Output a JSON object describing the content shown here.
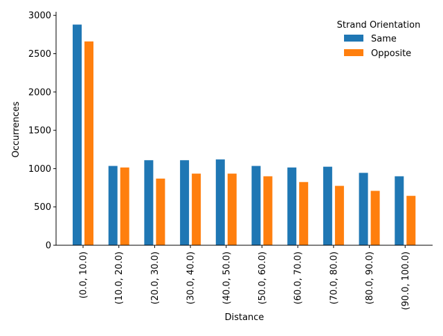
{
  "chart_data": {
    "type": "bar",
    "title": "",
    "xlabel": "Distance",
    "ylabel": "Occurrences",
    "ylim": [
      0,
      3020
    ],
    "yticks": [
      0,
      500,
      1000,
      1500,
      2000,
      2500,
      3000
    ],
    "grid": false,
    "legend": {
      "title": "Strand Orientation",
      "placement": "top-right"
    },
    "categories": [
      "(0.0, 10.0)",
      "(10.0, 20.0)",
      "(20.0, 30.0)",
      "(30.0, 40.0)",
      "(40.0, 50.0)",
      "(50.0, 60.0)",
      "(60.0, 70.0)",
      "(70.0, 80.0)",
      "(80.0, 90.0)",
      "(90.0, 100.0)"
    ],
    "series": [
      {
        "name": "Same",
        "color": "#1f77b4",
        "values": [
          2880,
          1035,
          1110,
          1110,
          1120,
          1035,
          1015,
          1025,
          945,
          900
        ]
      },
      {
        "name": "Opposite",
        "color": "#ff7f0e",
        "values": [
          2660,
          1015,
          870,
          935,
          935,
          900,
          825,
          775,
          710,
          645
        ]
      }
    ]
  }
}
